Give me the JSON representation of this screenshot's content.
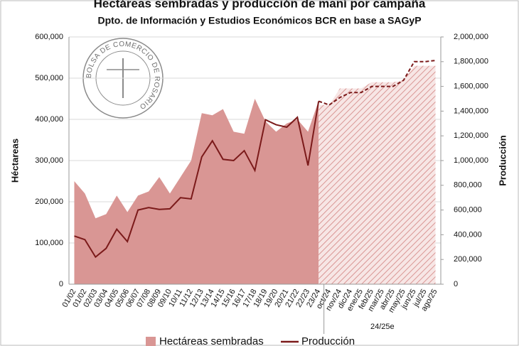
{
  "logo": "BOLSA DE COMERCIO DE ROSARIO",
  "chart_data": {
    "type": "area_line",
    "title": "Hectáreas sembradas y producción de maní por campaña",
    "subtitle": "Dpto. de Información y Estudios Económicos BCR en base a SAGyP",
    "y_label": "Héctareas",
    "y2_label": "Producción",
    "categories": [
      "01/02",
      "01/02",
      "02/03",
      "03/04",
      "04/05",
      "05/06",
      "06/07",
      "07/08",
      "08/09",
      "09/10",
      "10/11",
      "11/12",
      "12/13",
      "13/14",
      "14/15",
      "15/16",
      "16/17",
      "17/18",
      "18/19",
      "19/20",
      "20/21",
      "21/22",
      "22/23",
      "23/24"
    ],
    "estimate_label": "24/25e",
    "estimate_categories": [
      "oct/24",
      "nov/24",
      "dic/24",
      "ene/25",
      "feb/25",
      "mar/25",
      "abr/25",
      "may/25",
      "jun/25",
      "jul/25",
      "ago/25"
    ],
    "series": [
      {
        "name": "Hectáreas sembradas",
        "color": "#d99694",
        "axis": "y",
        "values": [
          250000,
          220000,
          160000,
          170000,
          215000,
          175000,
          215000,
          225000,
          260000,
          220000,
          260000,
          300000,
          415000,
          410000,
          425000,
          370000,
          365000,
          450000,
          395000,
          370000,
          390000,
          400000,
          370000,
          445000
        ],
        "estimate_values": [
          435000,
          475000,
          475000,
          475000,
          490000,
          490000,
          490000,
          495000,
          530000,
          530000,
          530000
        ]
      },
      {
        "name": "Producción",
        "color": "#7b1a1a",
        "axis": "y2",
        "values": [
          390000,
          360000,
          220000,
          290000,
          445000,
          345000,
          600000,
          620000,
          605000,
          610000,
          700000,
          690000,
          1030000,
          1160000,
          1010000,
          1000000,
          1080000,
          920000,
          1330000,
          1290000,
          1270000,
          1350000,
          960000,
          1480000
        ],
        "estimate_values": [
          1450000,
          1510000,
          1550000,
          1550000,
          1600000,
          1600000,
          1600000,
          1650000,
          1800000,
          1800000,
          1810000
        ]
      }
    ],
    "ylim": [
      0,
      600000
    ],
    "yticks": [
      0,
      {
        "value": 100000,
        "label": "100,000"
      },
      {
        "value": 200000,
        "label": "200,000"
      },
      {
        "value": 300000,
        "label": "300,000"
      },
      {
        "value": 400000,
        "label": "400,000"
      },
      {
        "value": 500000,
        "label": "500,000"
      },
      {
        "value": 600000,
        "label": "600,000"
      }
    ],
    "y2lim": [
      0,
      2000000
    ],
    "y2ticks": [
      0,
      {
        "value": 200000,
        "label": "200,000"
      },
      {
        "value": 400000,
        "label": "400,000"
      },
      {
        "value": 600000,
        "label": "600,000"
      },
      {
        "value": 800000,
        "label": "800,000"
      },
      {
        "value": 1000000,
        "label": "1,000,000"
      },
      {
        "value": 1200000,
        "label": "1,200,000"
      },
      {
        "value": 1400000,
        "label": "1,400,000"
      },
      {
        "value": 1600000,
        "label": "1,600,000"
      },
      {
        "value": 1800000,
        "label": "1,800,000"
      },
      {
        "value": 2000000,
        "label": "2,000,000"
      }
    ],
    "grid": true
  }
}
